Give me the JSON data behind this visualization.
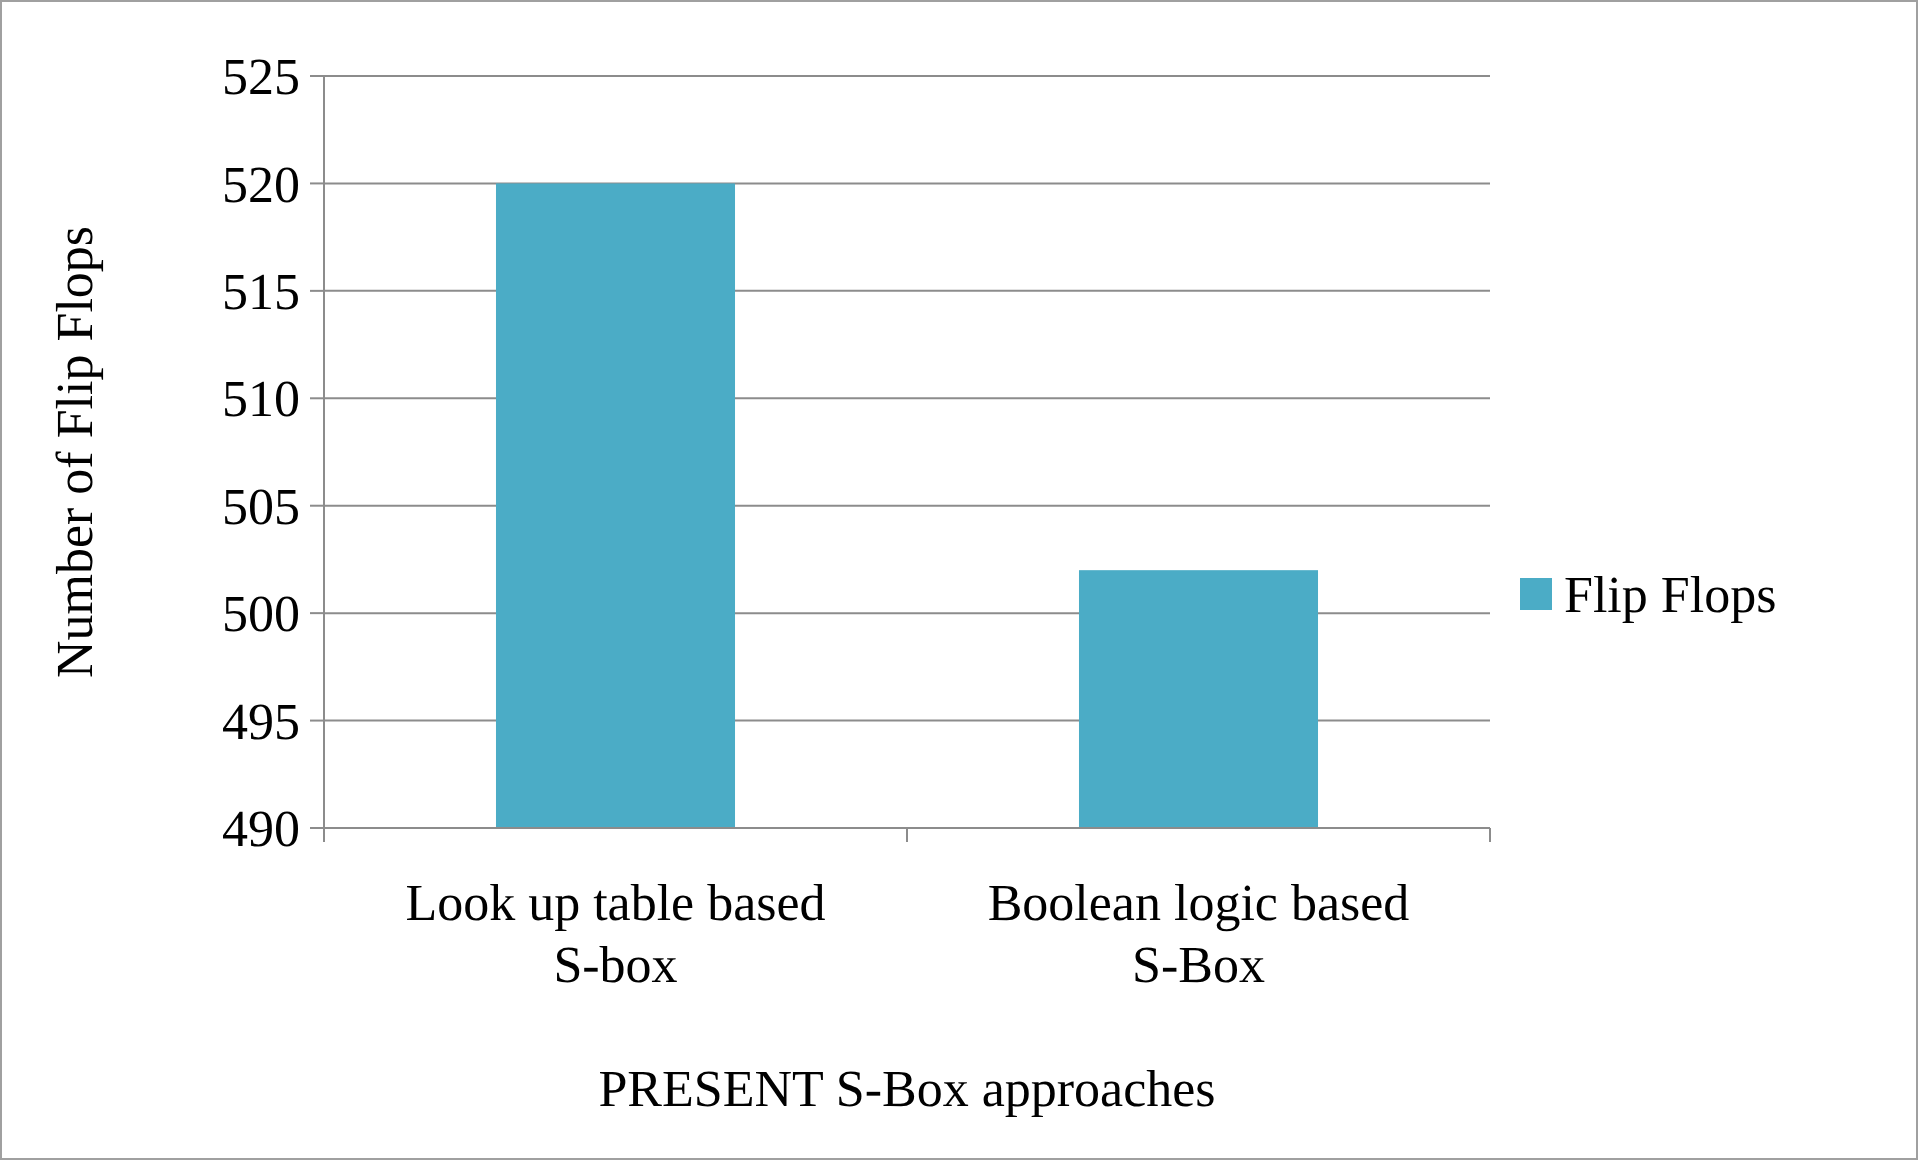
{
  "chart_data": {
    "type": "bar",
    "xlabel": "PRESENT S-Box approaches",
    "ylabel": "Number of Flip Flops",
    "categories": [
      "Look up table based S-box",
      "Boolean logic based S-Box"
    ],
    "series": [
      {
        "name": "Flip Flops",
        "color": "#4bacc6",
        "values": [
          520,
          502
        ]
      }
    ],
    "ylim": [
      490,
      525
    ],
    "yticks": [
      490,
      495,
      500,
      505,
      510,
      515,
      520,
      525
    ],
    "grid": "y",
    "legend": "right"
  }
}
